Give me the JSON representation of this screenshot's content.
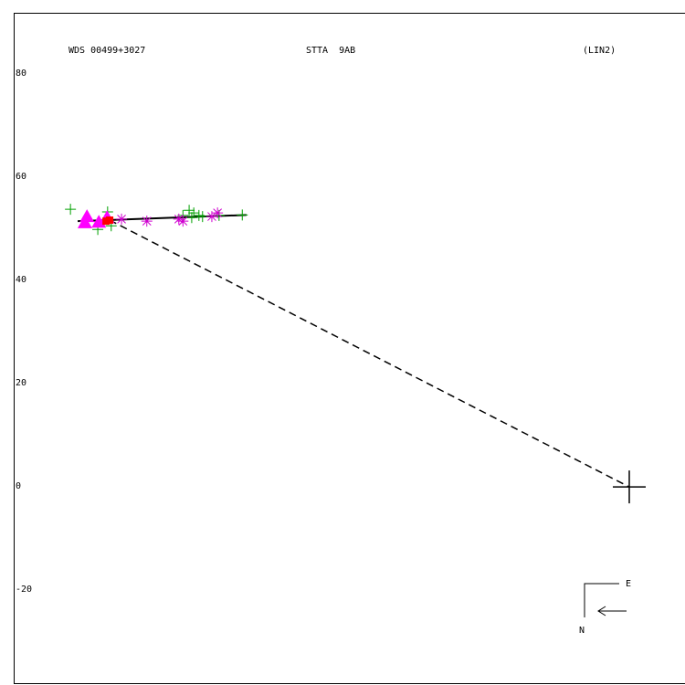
{
  "chart_data": {
    "type": "scatter",
    "title": "WDS 00499+3027",
    "subtitle": "STTA  9AB",
    "annotations": [
      "(LIN2)",
      "E",
      "N"
    ],
    "xlim": [
      119.3,
      -10.8
    ],
    "ylim": [
      -38.2,
      91.7
    ],
    "yticks": [
      80,
      60,
      40,
      20,
      0,
      -20
    ],
    "series": [
      {
        "color": "#00a000",
        "marker": "plus",
        "x": [
          108.3,
          101.1,
          103.0,
          100.4,
          86.5,
          85.3,
          84.4,
          83.4,
          82.7,
          79.5,
          75.0,
          84.8
        ],
        "values": [
          53.8,
          53.3,
          49.9,
          50.6,
          52.6,
          53.6,
          53.1,
          52.6,
          52.4,
          52.6,
          52.7,
          52.2
        ]
      },
      {
        "color": "#d000d0",
        "marker": "asterisk",
        "x": [
          98.4,
          93.5,
          87.3,
          86.5,
          79.8,
          80.9
        ],
        "values": [
          51.9,
          51.5,
          51.9,
          51.5,
          53.1,
          52.4
        ]
      },
      {
        "color": "#ff00ff",
        "marker": "triangle",
        "x": [
          105.1,
          105.5,
          102.8,
          101.2
        ],
        "values": [
          52.4,
          51.2,
          51.3,
          52.2
        ]
      },
      {
        "color": "#ff0000",
        "marker": "square",
        "x": [
          100.7,
          101.4
        ],
        "values": [
          51.7,
          51.5
        ]
      },
      {
        "color": "#000000",
        "marker": "cross",
        "x": [
          0
        ],
        "values": [
          0
        ]
      }
    ],
    "lines": [
      {
        "color": "#000000",
        "dash": false,
        "x": [
          106.9,
          74.2
        ],
        "values": [
          51.5,
          52.7
        ]
      },
      {
        "color": "#000000",
        "dash": true,
        "x": [
          100.7,
          0
        ],
        "values": [
          51.7,
          0
        ]
      }
    ]
  }
}
